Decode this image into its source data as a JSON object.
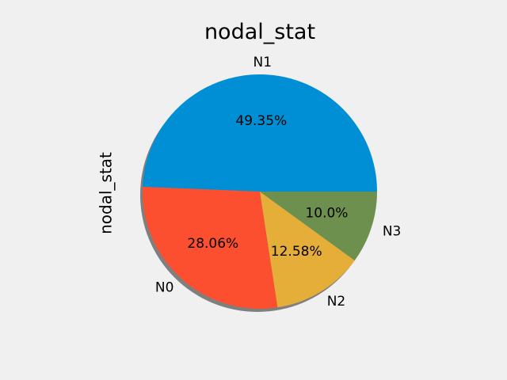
{
  "chart_data": {
    "type": "pie",
    "title": "nodal_stat",
    "ylabel": "nodal_stat",
    "categories": [
      "N1",
      "N0",
      "N2",
      "N3"
    ],
    "values": [
      49.35,
      28.06,
      12.58,
      10.0
    ],
    "labels_pct": [
      "49.35%",
      "28.06%",
      "12.58%",
      "10.0%"
    ],
    "colors": [
      "#008fd5",
      "#fc4f30",
      "#e5ae38",
      "#6d904f"
    ],
    "start_angle_deg": 0,
    "direction": "counterclockwise",
    "shadow": true
  }
}
